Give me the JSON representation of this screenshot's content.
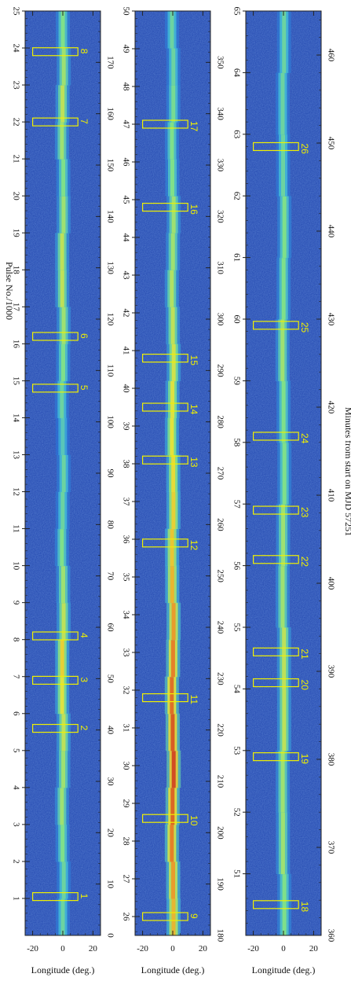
{
  "chart_data": {
    "type": "heatmap",
    "colormap": [
      "#1c3fa8",
      "#2a6bd6",
      "#3fb5d8",
      "#7fe08a",
      "#e6e23a",
      "#e88a2a",
      "#c8321e"
    ],
    "box_color": "#f0f000",
    "x_axis": {
      "label": "Longitude (deg.)",
      "ticks": [
        "-20",
        "0",
        "20"
      ],
      "range": [
        -25,
        25
      ]
    },
    "top_axis_label": "Pulse No./1000",
    "right_axis_label": "Minutes from start on MJD 57251",
    "panels": [
      {
        "pulse_range": [
          0,
          25
        ],
        "pulse_ticks": [
          "1",
          "2",
          "3",
          "4",
          "5",
          "6",
          "7",
          "8",
          "9",
          "10",
          "11",
          "12",
          "13",
          "14",
          "15",
          "16",
          "17",
          "18",
          "19",
          "20",
          "21",
          "22",
          "23",
          "24",
          "25"
        ],
        "minute_range": [
          0,
          180
        ],
        "minute_ticks": [
          "0",
          "10",
          "20",
          "30",
          "40",
          "50",
          "60",
          "70",
          "80",
          "90",
          "100",
          "110",
          "120",
          "130",
          "140",
          "150",
          "160",
          "170"
        ],
        "intensity": [
          0.45,
          0.45,
          0.5,
          0.55,
          0.55,
          0.6,
          0.65,
          0.7,
          0.6,
          0.55,
          0.5,
          0.45,
          0.45,
          0.4,
          0.45,
          0.5,
          0.55,
          0.6,
          0.6,
          0.55,
          0.5,
          0.55,
          0.6,
          0.55,
          0.5
        ],
        "events": [
          {
            "label": "1",
            "pulse": 1.05
          },
          {
            "label": "2",
            "pulse": 5.6
          },
          {
            "label": "3",
            "pulse": 6.9
          },
          {
            "label": "4",
            "pulse": 8.1
          },
          {
            "label": "5",
            "pulse": 14.8
          },
          {
            "label": "6",
            "pulse": 16.2
          },
          {
            "label": "7",
            "pulse": 22.0
          },
          {
            "label": "8",
            "pulse": 23.9
          }
        ]
      },
      {
        "pulse_range": [
          25.5,
          50
        ],
        "pulse_ticks": [
          "26",
          "27",
          "28",
          "29",
          "30",
          "31",
          "32",
          "33",
          "34",
          "35",
          "36",
          "37",
          "38",
          "39",
          "40",
          "41",
          "42",
          "43",
          "44",
          "45",
          "46",
          "47",
          "48",
          "49",
          "50"
        ],
        "minute_range": [
          180,
          360
        ],
        "minute_ticks": [
          "180",
          "190",
          "200",
          "210",
          "220",
          "230",
          "240",
          "250",
          "260",
          "270",
          "280",
          "290",
          "300",
          "310",
          "320",
          "330",
          "340",
          "350"
        ],
        "intensity": [
          0.75,
          0.8,
          0.85,
          0.9,
          0.95,
          0.92,
          0.88,
          0.85,
          0.8,
          0.75,
          0.72,
          0.7,
          0.68,
          0.66,
          0.65,
          0.63,
          0.6,
          0.58,
          0.55,
          0.55,
          0.5,
          0.5,
          0.48,
          0.45,
          0.45
        ],
        "events": [
          {
            "label": "9",
            "pulse": 26.0
          },
          {
            "label": "10",
            "pulse": 28.6
          },
          {
            "label": "11",
            "pulse": 31.8
          },
          {
            "label": "12",
            "pulse": 35.9
          },
          {
            "label": "13",
            "pulse": 38.1
          },
          {
            "label": "14",
            "pulse": 39.5
          },
          {
            "label": "15",
            "pulse": 40.8
          },
          {
            "label": "16",
            "pulse": 44.8
          },
          {
            "label": "17",
            "pulse": 47.0
          }
        ]
      },
      {
        "pulse_range": [
          50,
          65
        ],
        "pulse_ticks": [
          "51",
          "52",
          "53",
          "54",
          "55",
          "56",
          "57",
          "58",
          "59",
          "60",
          "61",
          "62",
          "63",
          "64",
          "65"
        ],
        "minute_range": [
          360,
          465
        ],
        "minute_ticks": [
          "360",
          "370",
          "380",
          "390",
          "400",
          "410",
          "420",
          "430",
          "440",
          "450",
          "460"
        ],
        "intensity": [
          0.5,
          0.55,
          0.55,
          0.6,
          0.6,
          0.55,
          0.55,
          0.5,
          0.5,
          0.55,
          0.5,
          0.5,
          0.45,
          0.45,
          0.45
        ],
        "events": [
          {
            "label": "18",
            "pulse": 50.5
          },
          {
            "label": "19",
            "pulse": 52.9
          },
          {
            "label": "20",
            "pulse": 54.1
          },
          {
            "label": "21",
            "pulse": 54.6
          },
          {
            "label": "22",
            "pulse": 56.1
          },
          {
            "label": "23",
            "pulse": 56.9
          },
          {
            "label": "24",
            "pulse": 58.1
          },
          {
            "label": "25",
            "pulse": 59.9
          },
          {
            "label": "26",
            "pulse": 62.8
          }
        ]
      }
    ]
  }
}
